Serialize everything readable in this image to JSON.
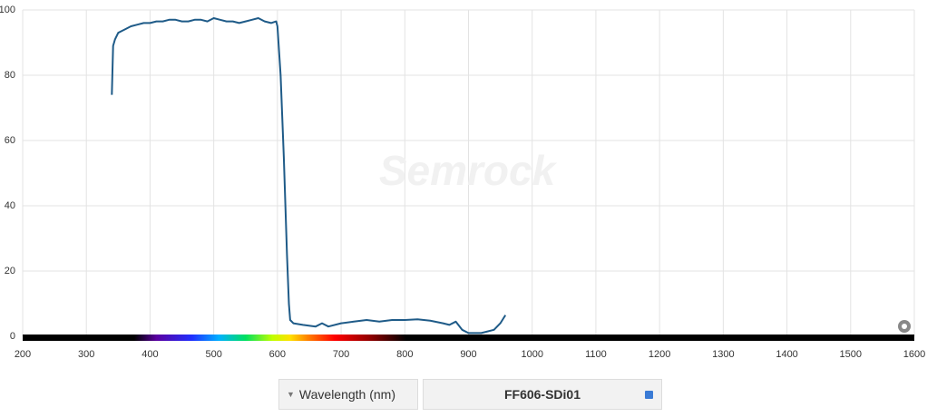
{
  "chart_data": {
    "type": "line",
    "watermark": "Semrock",
    "xlabel": "Wavelength (nm)",
    "xlim": [
      200,
      1600
    ],
    "xticks": [
      200,
      300,
      400,
      500,
      600,
      700,
      800,
      900,
      1000,
      1100,
      1200,
      1300,
      1400,
      1500,
      1600
    ],
    "ylim": [
      0,
      100
    ],
    "yticks": [
      0,
      20,
      40,
      60,
      80,
      100
    ],
    "grid": true,
    "x": [
      340,
      342,
      345,
      350,
      355,
      360,
      370,
      380,
      390,
      400,
      410,
      420,
      430,
      440,
      450,
      460,
      470,
      480,
      490,
      500,
      510,
      520,
      530,
      540,
      550,
      560,
      570,
      580,
      590,
      598,
      600,
      605,
      610,
      615,
      618,
      620,
      625,
      640,
      660,
      670,
      680,
      700,
      720,
      740,
      760,
      780,
      800,
      820,
      840,
      860,
      870,
      880,
      890,
      900,
      920,
      940,
      950,
      958
    ],
    "series": [
      {
        "name": "FF606-SDi01",
        "color": "#1f5b88",
        "values": [
          74,
          89,
          91,
          93,
          93.5,
          94,
          95,
          95.5,
          96,
          96,
          96.5,
          96.5,
          97,
          97,
          96.5,
          96.5,
          97,
          97,
          96.5,
          97.5,
          97,
          96.5,
          96.5,
          96,
          96.5,
          97,
          97.5,
          96.5,
          96,
          96.5,
          95,
          80,
          55,
          25,
          10,
          5,
          4,
          3.5,
          3,
          4,
          3,
          4,
          4.5,
          5,
          4.5,
          5,
          5,
          5.2,
          4.8,
          4,
          3.5,
          4.5,
          2,
          1,
          1,
          2,
          4,
          6.5
        ]
      }
    ]
  }
}
